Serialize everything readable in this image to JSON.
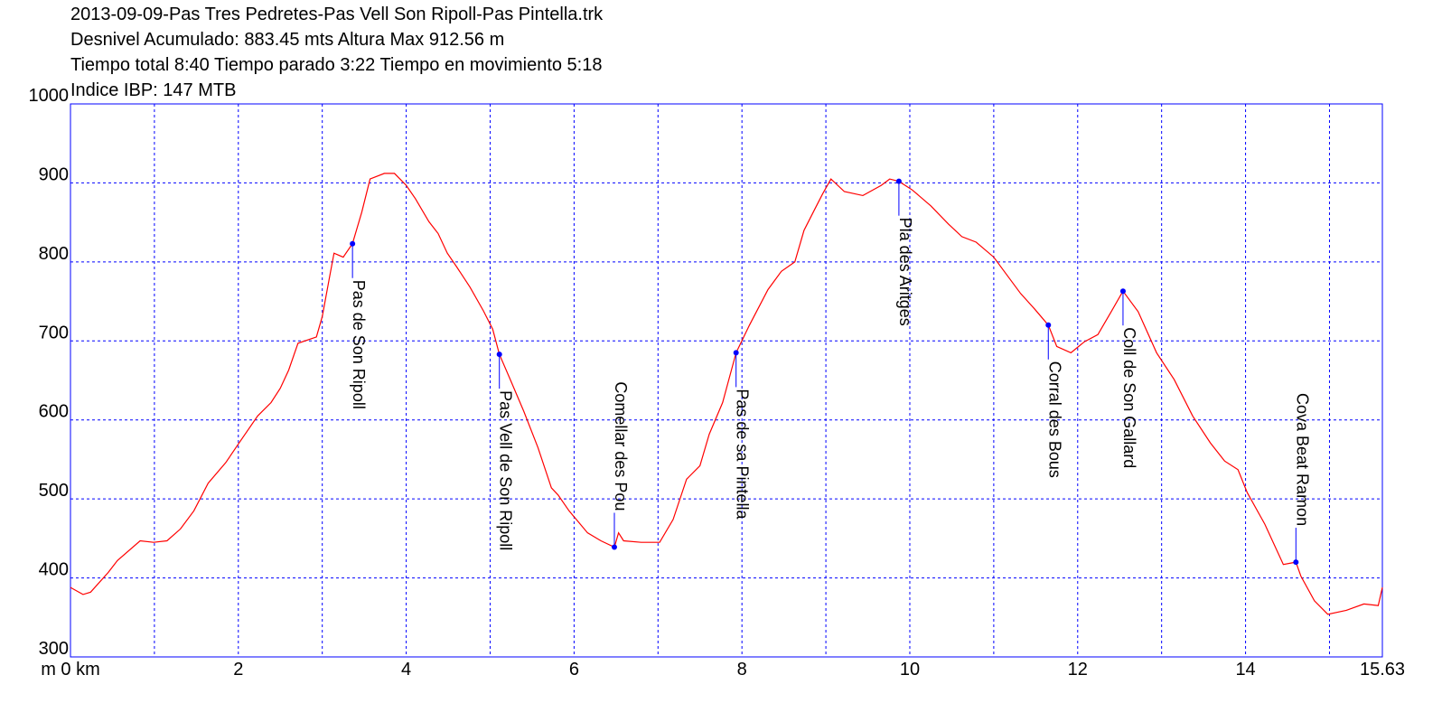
{
  "chart_data": {
    "type": "line",
    "title_lines": [
      "2013-09-09-Pas Tres Pedretes-Pas Vell Son Ripoll-Pas Pintella.trk",
      "Desnivel Acumulado: 883.45 mts  Altura Max 912.56 m",
      "Tiempo total 8:40 Tiempo parado 3:22 Tiempo en movimiento 5:18",
      "Indice IBP: 147 MTB"
    ],
    "x": [
      0,
      0.15,
      0.24,
      0.45,
      0.56,
      0.83,
      0.99,
      1.15,
      1.31,
      1.47,
      1.64,
      1.85,
      2.01,
      2.23,
      2.39,
      2.5,
      2.6,
      2.71,
      2.93,
      3.0,
      3.09,
      3.14,
      3.25,
      3.36,
      3.47,
      3.57,
      3.74,
      3.86,
      4.0,
      4.11,
      4.27,
      4.38,
      4.49,
      4.6,
      4.76,
      4.92,
      5.03,
      5.11,
      5.24,
      5.4,
      5.57,
      5.73,
      5.81,
      5.94,
      6.16,
      6.32,
      6.48,
      6.53,
      6.59,
      6.8,
      7.02,
      7.18,
      7.34,
      7.5,
      7.61,
      7.77,
      7.93,
      8.09,
      8.31,
      8.47,
      8.63,
      8.74,
      8.85,
      8.96,
      9.06,
      9.22,
      9.44,
      9.66,
      9.76,
      9.87,
      10.03,
      10.25,
      10.46,
      10.62,
      10.79,
      11.0,
      11.16,
      11.32,
      11.49,
      11.65,
      11.75,
      11.92,
      12.08,
      12.24,
      12.4,
      12.54,
      12.72,
      12.94,
      13.15,
      13.37,
      13.58,
      13.75,
      13.91,
      14.02,
      14.23,
      14.45,
      14.6,
      14.66,
      14.82,
      14.98,
      15.2,
      15.41,
      15.58,
      15.63
    ],
    "values": [
      388,
      379,
      382,
      407,
      422,
      447,
      445,
      447,
      462,
      485,
      520,
      546,
      571,
      605,
      622,
      640,
      663,
      697,
      705,
      731,
      783,
      811,
      806,
      823,
      863,
      905,
      912,
      912,
      897,
      880,
      851,
      836,
      811,
      794,
      768,
      738,
      715,
      683,
      651,
      611,
      565,
      514,
      505,
      485,
      457,
      447,
      439,
      457,
      447,
      445,
      445,
      474,
      525,
      542,
      582,
      622,
      685,
      720,
      765,
      788,
      800,
      840,
      863,
      886,
      905,
      889,
      884,
      897,
      905,
      902,
      891,
      871,
      848,
      832,
      825,
      806,
      783,
      760,
      740,
      720,
      693,
      685,
      699,
      708,
      737,
      763,
      737,
      685,
      651,
      605,
      571,
      548,
      537,
      508,
      468,
      417,
      420,
      402,
      371,
      354,
      359,
      367,
      365,
      388
    ],
    "color": "#ff0000",
    "waypoints": [
      {
        "name": "Pas de Son Ripoll",
        "x": 3.36,
        "y": 823
      },
      {
        "name": "Pas Vell de Son Ripoll",
        "x": 5.11,
        "y": 683
      },
      {
        "name": "Comellar des Pou",
        "x": 6.48,
        "y": 439
      },
      {
        "name": "Pas de sa Pintella",
        "x": 7.93,
        "y": 685
      },
      {
        "name": "Pla des Aritges",
        "x": 9.87,
        "y": 902
      },
      {
        "name": "Corral des Bous",
        "x": 11.65,
        "y": 720
      },
      {
        "name": "Coll de Son Gallard",
        "x": 12.54,
        "y": 763
      },
      {
        "name": "Cova Beat Ramon",
        "x": 14.6,
        "y": 420
      }
    ],
    "waypoint_color": "#0000ff",
    "xlim": [
      0,
      15.63
    ],
    "ylim": [
      300,
      1000
    ],
    "xticks": [
      {
        "value": 0,
        "label": "m 0 km"
      },
      2,
      4,
      6,
      8,
      10,
      12,
      14,
      15.63
    ],
    "xgrid": [
      1,
      2,
      3,
      4,
      5,
      6,
      7,
      8,
      9,
      10,
      11,
      12,
      13,
      14,
      15
    ],
    "yticks": [
      300,
      400,
      500,
      600,
      700,
      800,
      900,
      1000
    ],
    "grid": true,
    "grid_color": "#0000ff"
  }
}
